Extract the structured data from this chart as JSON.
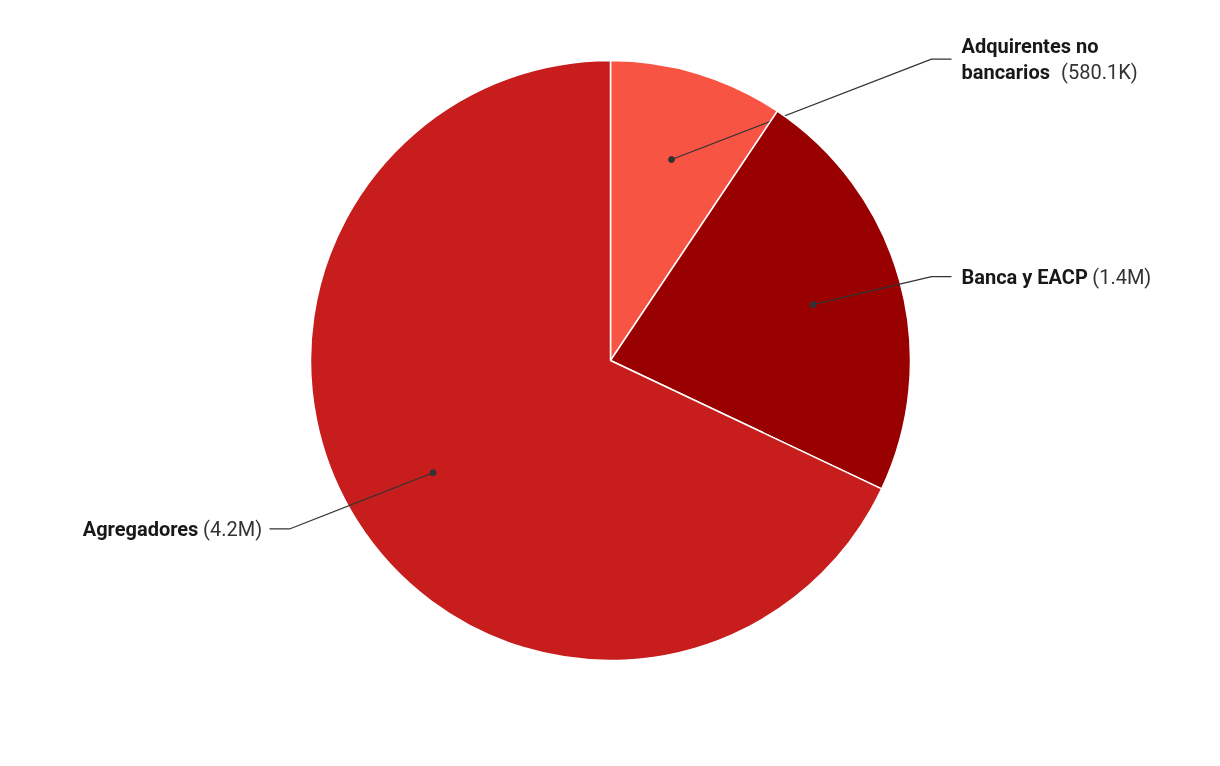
{
  "chart_data": {
    "type": "pie",
    "categories": [
      "Adquirentes no bancarios",
      "Banca y EACP",
      "Agregadores"
    ],
    "values": [
      580100,
      1400000,
      4200000
    ],
    "value_labels": [
      "(580.1K)",
      "(1.4M)",
      "(4.2M)"
    ],
    "colors": [
      "#f75443",
      "#990000",
      "#c71d1d"
    ]
  }
}
